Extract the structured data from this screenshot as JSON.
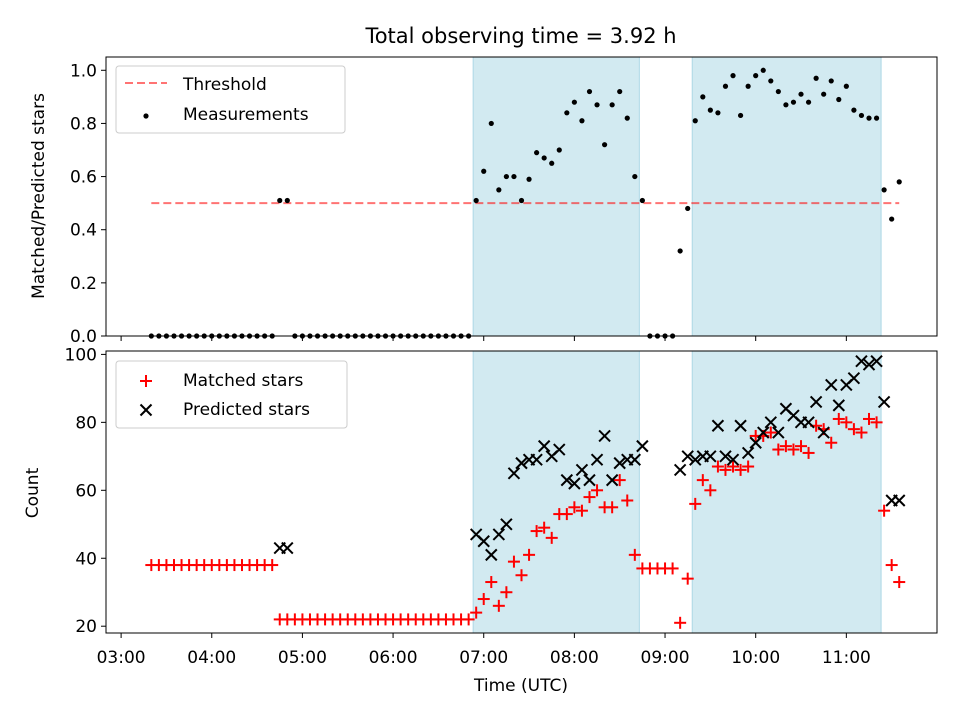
{
  "title": "Total observing time = 3.92 h",
  "colors": {
    "shade": "#add8e6",
    "threshold": "#ff0000",
    "measurement": "#000000",
    "matched": "#ff0000",
    "predicted": "#000000"
  },
  "chart_data": [
    {
      "type": "scatter",
      "ylabel": "Matched/Predicted stars",
      "ylim": [
        0,
        1.05
      ],
      "yticks": [
        0.0,
        0.2,
        0.4,
        0.6,
        0.8,
        1.0
      ],
      "ytick_labels": [
        "0.0",
        "0.2",
        "0.4",
        "0.6",
        "0.8",
        "1.0"
      ],
      "legend_position": "upper-left",
      "legend": {
        "threshold": "Threshold",
        "measurements": "Measurements"
      },
      "threshold": {
        "value": 0.5,
        "x_start": "03:20",
        "x_end": "11:35"
      },
      "shaded_intervals": [
        [
          "06:53",
          "08:43"
        ],
        [
          "09:18",
          "11:23"
        ]
      ],
      "series": [
        {
          "name": "Measurements",
          "x": [
            "03:20",
            "03:25",
            "03:30",
            "03:35",
            "03:40",
            "03:45",
            "03:50",
            "03:55",
            "04:00",
            "04:05",
            "04:10",
            "04:15",
            "04:20",
            "04:25",
            "04:30",
            "04:35",
            "04:40",
            "04:45",
            "04:50",
            "04:55",
            "05:00",
            "05:05",
            "05:10",
            "05:15",
            "05:20",
            "05:25",
            "05:30",
            "05:35",
            "05:40",
            "05:45",
            "05:50",
            "05:55",
            "06:00",
            "06:05",
            "06:10",
            "06:15",
            "06:20",
            "06:25",
            "06:30",
            "06:35",
            "06:40",
            "06:45",
            "06:50",
            "06:55",
            "07:00",
            "07:05",
            "07:10",
            "07:15",
            "07:20",
            "07:25",
            "07:30",
            "07:35",
            "07:40",
            "07:45",
            "07:50",
            "07:55",
            "08:00",
            "08:05",
            "08:10",
            "08:15",
            "08:20",
            "08:25",
            "08:30",
            "08:35",
            "08:40",
            "08:45",
            "08:50",
            "08:55",
            "09:00",
            "09:05",
            "09:10",
            "09:15",
            "09:20",
            "09:25",
            "09:30",
            "09:35",
            "09:40",
            "09:45",
            "09:50",
            "09:55",
            "10:00",
            "10:05",
            "10:10",
            "10:15",
            "10:20",
            "10:25",
            "10:30",
            "10:35",
            "10:40",
            "10:45",
            "10:50",
            "10:55",
            "11:00",
            "11:05",
            "11:10",
            "11:15",
            "11:20",
            "11:25",
            "11:30",
            "11:35"
          ],
          "y": [
            0,
            0,
            0,
            0,
            0,
            0,
            0,
            0,
            0,
            0,
            0,
            0,
            0,
            0,
            0,
            0,
            0,
            0.51,
            0.51,
            0,
            0,
            0,
            0,
            0,
            0,
            0,
            0,
            0,
            0,
            0,
            0,
            0,
            0,
            0,
            0,
            0,
            0,
            0,
            0,
            0,
            0,
            0,
            0,
            0.51,
            0.62,
            0.8,
            0.55,
            0.6,
            0.6,
            0.51,
            0.59,
            0.69,
            0.67,
            0.65,
            0.7,
            0.84,
            0.88,
            0.81,
            0.92,
            0.87,
            0.72,
            0.87,
            0.92,
            0.82,
            0.6,
            0.51,
            0,
            0,
            0,
            0,
            0.32,
            0.48,
            0.81,
            0.9,
            0.85,
            0.84,
            0.94,
            0.98,
            0.83,
            0.94,
            0.98,
            1.0,
            0.96,
            0.92,
            0.87,
            0.88,
            0.91,
            0.88,
            0.97,
            0.91,
            0.96,
            0.89,
            0.94,
            0.85,
            0.83,
            0.82,
            0.82,
            0.55,
            0.44,
            0.58
          ]
        }
      ]
    },
    {
      "type": "scatter",
      "ylabel": "Count",
      "xlabel": "Time (UTC)",
      "ylim": [
        18,
        101
      ],
      "yticks": [
        20,
        40,
        60,
        80,
        100
      ],
      "ytick_labels": [
        "20",
        "40",
        "60",
        "80",
        "100"
      ],
      "xlim": [
        "02:50",
        "12:00"
      ],
      "xticks": [
        "03:00",
        "04:00",
        "05:00",
        "06:00",
        "07:00",
        "08:00",
        "09:00",
        "10:00",
        "11:00"
      ],
      "xtick_labels": [
        "03:00",
        "04:00",
        "05:00",
        "06:00",
        "07:00",
        "08:00",
        "09:00",
        "10:00",
        "11:00"
      ],
      "legend_position": "upper-left",
      "shaded_intervals": [
        [
          "06:53",
          "08:43"
        ],
        [
          "09:18",
          "11:23"
        ]
      ],
      "series": [
        {
          "name": "Matched stars",
          "marker": "plus",
          "x": [
            "03:20",
            "03:25",
            "03:30",
            "03:35",
            "03:40",
            "03:45",
            "03:50",
            "03:55",
            "04:00",
            "04:05",
            "04:10",
            "04:15",
            "04:20",
            "04:25",
            "04:30",
            "04:35",
            "04:40",
            "04:45",
            "04:50",
            "04:55",
            "05:00",
            "05:05",
            "05:10",
            "05:15",
            "05:20",
            "05:25",
            "05:30",
            "05:35",
            "05:40",
            "05:45",
            "05:50",
            "05:55",
            "06:00",
            "06:05",
            "06:10",
            "06:15",
            "06:20",
            "06:25",
            "06:30",
            "06:35",
            "06:40",
            "06:45",
            "06:50",
            "06:55",
            "07:00",
            "07:05",
            "07:10",
            "07:15",
            "07:20",
            "07:25",
            "07:30",
            "07:35",
            "07:40",
            "07:45",
            "07:50",
            "07:55",
            "08:00",
            "08:05",
            "08:10",
            "08:15",
            "08:20",
            "08:25",
            "08:30",
            "08:35",
            "08:40",
            "08:45",
            "08:50",
            "08:55",
            "09:00",
            "09:05",
            "09:10",
            "09:15",
            "09:20",
            "09:25",
            "09:30",
            "09:35",
            "09:40",
            "09:45",
            "09:50",
            "09:55",
            "10:00",
            "10:05",
            "10:10",
            "10:15",
            "10:20",
            "10:25",
            "10:30",
            "10:35",
            "10:40",
            "10:45",
            "10:50",
            "10:55",
            "11:00",
            "11:05",
            "11:10",
            "11:15",
            "11:20",
            "11:25",
            "11:30",
            "11:35"
          ],
          "y": [
            38,
            38,
            38,
            38,
            38,
            38,
            38,
            38,
            38,
            38,
            38,
            38,
            38,
            38,
            38,
            38,
            38,
            22,
            22,
            22,
            22,
            22,
            22,
            22,
            22,
            22,
            22,
            22,
            22,
            22,
            22,
            22,
            22,
            22,
            22,
            22,
            22,
            22,
            22,
            22,
            22,
            22,
            22,
            24,
            28,
            33,
            26,
            30,
            39,
            35,
            41,
            48,
            49,
            46,
            53,
            53,
            55,
            54,
            58,
            60,
            55,
            55,
            63,
            57,
            41,
            37,
            37,
            37,
            37,
            37,
            21,
            34,
            56,
            63,
            60,
            67,
            66,
            67,
            66,
            67,
            76,
            76,
            77,
            72,
            73,
            72,
            73,
            71,
            79,
            78,
            74,
            81,
            80,
            78,
            77,
            81,
            80,
            54,
            38,
            33
          ]
        },
        {
          "name": "Predicted stars",
          "marker": "x",
          "x": [
            "04:45",
            "04:50",
            "06:55",
            "07:00",
            "07:05",
            "07:10",
            "07:15",
            "07:20",
            "07:25",
            "07:30",
            "07:35",
            "07:40",
            "07:45",
            "07:50",
            "07:55",
            "08:00",
            "08:05",
            "08:10",
            "08:15",
            "08:20",
            "08:25",
            "08:30",
            "08:35",
            "08:40",
            "08:45",
            "09:10",
            "09:15",
            "09:20",
            "09:25",
            "09:30",
            "09:35",
            "09:40",
            "09:45",
            "09:50",
            "09:55",
            "10:00",
            "10:05",
            "10:10",
            "10:15",
            "10:20",
            "10:25",
            "10:30",
            "10:35",
            "10:40",
            "10:45",
            "10:50",
            "10:55",
            "11:00",
            "11:05",
            "11:10",
            "11:15",
            "11:20",
            "11:25",
            "11:30",
            "11:35"
          ],
          "y": [
            43,
            43,
            47,
            45,
            41,
            47,
            50,
            65,
            68,
            69,
            69,
            73,
            70,
            72,
            63,
            62,
            66,
            63,
            69,
            76,
            63,
            68,
            69,
            69,
            73,
            66,
            70,
            69,
            70,
            70,
            79,
            70,
            69,
            79,
            71,
            74,
            77,
            80,
            77,
            84,
            82,
            80,
            80,
            86,
            77,
            91,
            85,
            91,
            93,
            98,
            97,
            98,
            86,
            57,
            57
          ]
        }
      ]
    }
  ]
}
